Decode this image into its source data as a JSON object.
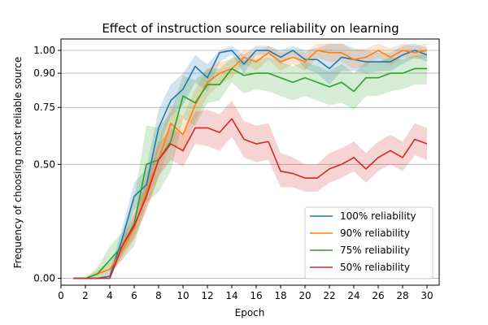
{
  "chart_data": {
    "type": "line",
    "title": "Effect of instruction source reliability on learning",
    "xlabel": "Epoch",
    "ylabel": "Frequency of choosing most reliable source",
    "xlim": [
      0,
      31
    ],
    "ylim": [
      -0.03,
      1.05
    ],
    "xticks": [
      0,
      2,
      4,
      6,
      8,
      10,
      12,
      14,
      16,
      18,
      20,
      22,
      24,
      26,
      28,
      30
    ],
    "xtick_labels": [
      "0",
      "2",
      "4",
      "6",
      "8",
      "10",
      "12",
      "14",
      "16",
      "18",
      "20",
      "22",
      "24",
      "26",
      "28",
      "30"
    ],
    "yticks": [
      0.0,
      0.5,
      0.75,
      0.9,
      1.0
    ],
    "ytick_labels": [
      "0.00",
      "0.50",
      "0.75",
      "0.90",
      "1.00"
    ],
    "grid": "horizontal",
    "legend_position": "lower-right",
    "x": [
      1,
      2,
      3,
      4,
      5,
      6,
      7,
      8,
      9,
      10,
      11,
      12,
      13,
      14,
      15,
      16,
      17,
      18,
      19,
      20,
      21,
      22,
      23,
      24,
      25,
      26,
      27,
      28,
      29,
      30
    ],
    "series": [
      {
        "name": "100% reliability",
        "color": "#1f77b4",
        "values": [
          0.0,
          0.0,
          0.0,
          0.01,
          0.17,
          0.36,
          0.41,
          0.66,
          0.78,
          0.83,
          0.93,
          0.88,
          0.99,
          1.0,
          0.94,
          1.0,
          1.0,
          0.97,
          1.0,
          0.96,
          0.96,
          0.92,
          0.97,
          0.96,
          0.95,
          0.95,
          0.95,
          0.98,
          1.0,
          0.98
        ],
        "lower": [
          0.0,
          0.0,
          0.0,
          0.0,
          0.12,
          0.3,
          0.34,
          0.58,
          0.71,
          0.76,
          0.86,
          0.82,
          0.95,
          0.98,
          0.9,
          0.98,
          0.98,
          0.94,
          0.98,
          0.92,
          0.9,
          0.85,
          0.91,
          0.91,
          0.9,
          0.91,
          0.91,
          0.94,
          0.97,
          0.95
        ],
        "upper": [
          0.0,
          0.0,
          0.0,
          0.03,
          0.22,
          0.42,
          0.48,
          0.74,
          0.85,
          0.9,
          0.98,
          0.94,
          1.0,
          1.02,
          0.98,
          1.02,
          1.02,
          1.0,
          1.02,
          1.0,
          1.01,
          1.03,
          1.03,
          1.01,
          1.0,
          0.99,
          0.99,
          1.02,
          1.03,
          1.01
        ]
      },
      {
        "name": "90% reliability",
        "color": "#ff7f0e",
        "values": [
          0.0,
          0.0,
          0.02,
          0.04,
          0.12,
          0.22,
          0.38,
          0.52,
          0.68,
          0.63,
          0.76,
          0.86,
          0.9,
          0.92,
          0.97,
          0.95,
          0.99,
          0.95,
          0.97,
          0.95,
          1.0,
          0.99,
          0.99,
          0.96,
          0.97,
          1.0,
          0.97,
          1.0,
          0.99,
          1.0
        ],
        "lower": [
          0.0,
          0.0,
          0.0,
          0.02,
          0.08,
          0.17,
          0.3,
          0.44,
          0.6,
          0.55,
          0.69,
          0.8,
          0.85,
          0.88,
          0.94,
          0.91,
          0.96,
          0.91,
          0.94,
          0.91,
          0.97,
          0.95,
          0.95,
          0.92,
          0.93,
          0.97,
          0.93,
          0.97,
          0.96,
          0.97
        ],
        "upper": [
          0.0,
          0.0,
          0.04,
          0.07,
          0.16,
          0.27,
          0.46,
          0.6,
          0.76,
          0.71,
          0.83,
          0.92,
          0.95,
          0.96,
          1.0,
          0.99,
          1.02,
          0.99,
          1.0,
          0.99,
          1.03,
          1.03,
          1.03,
          1.0,
          1.01,
          1.03,
          1.01,
          1.03,
          1.02,
          1.03
        ]
      },
      {
        "name": "75% reliability",
        "color": "#2ca02c",
        "values": [
          0.0,
          0.0,
          0.02,
          0.08,
          0.14,
          0.24,
          0.5,
          0.52,
          0.6,
          0.8,
          0.77,
          0.85,
          0.85,
          0.92,
          0.89,
          0.9,
          0.9,
          0.88,
          0.86,
          0.88,
          0.86,
          0.84,
          0.86,
          0.82,
          0.88,
          0.88,
          0.9,
          0.9,
          0.92,
          0.92
        ],
        "lower": [
          0.0,
          0.0,
          0.0,
          0.03,
          0.08,
          0.14,
          0.33,
          0.38,
          0.47,
          0.7,
          0.67,
          0.77,
          0.78,
          0.86,
          0.81,
          0.83,
          0.82,
          0.8,
          0.78,
          0.8,
          0.78,
          0.76,
          0.77,
          0.74,
          0.8,
          0.8,
          0.82,
          0.83,
          0.85,
          0.85
        ],
        "upper": [
          0.0,
          0.0,
          0.05,
          0.14,
          0.2,
          0.35,
          0.67,
          0.66,
          0.73,
          0.89,
          0.87,
          0.92,
          0.92,
          0.97,
          0.96,
          0.96,
          0.97,
          0.95,
          0.93,
          0.95,
          0.93,
          0.91,
          0.94,
          0.9,
          0.95,
          0.95,
          0.97,
          0.96,
          0.98,
          0.98
        ]
      },
      {
        "name": "50% reliability",
        "color": "#d62728",
        "values": [
          0.0,
          0.0,
          0.0,
          0.0,
          0.14,
          0.23,
          0.36,
          0.52,
          0.59,
          0.56,
          0.66,
          0.66,
          0.64,
          0.7,
          0.61,
          0.59,
          0.6,
          0.47,
          0.46,
          0.44,
          0.44,
          0.48,
          0.5,
          0.53,
          0.48,
          0.53,
          0.56,
          0.53,
          0.61,
          0.59
        ],
        "lower": [
          0.0,
          0.0,
          0.0,
          0.0,
          0.1,
          0.18,
          0.3,
          0.45,
          0.52,
          0.49,
          0.59,
          0.58,
          0.56,
          0.62,
          0.53,
          0.51,
          0.52,
          0.4,
          0.4,
          0.38,
          0.38,
          0.42,
          0.44,
          0.47,
          0.42,
          0.47,
          0.5,
          0.47,
          0.54,
          0.52
        ],
        "upper": [
          0.0,
          0.0,
          0.0,
          0.01,
          0.18,
          0.28,
          0.42,
          0.59,
          0.66,
          0.63,
          0.73,
          0.74,
          0.72,
          0.78,
          0.69,
          0.67,
          0.68,
          0.55,
          0.53,
          0.5,
          0.5,
          0.55,
          0.57,
          0.6,
          0.55,
          0.6,
          0.63,
          0.6,
          0.68,
          0.66
        ]
      }
    ]
  }
}
